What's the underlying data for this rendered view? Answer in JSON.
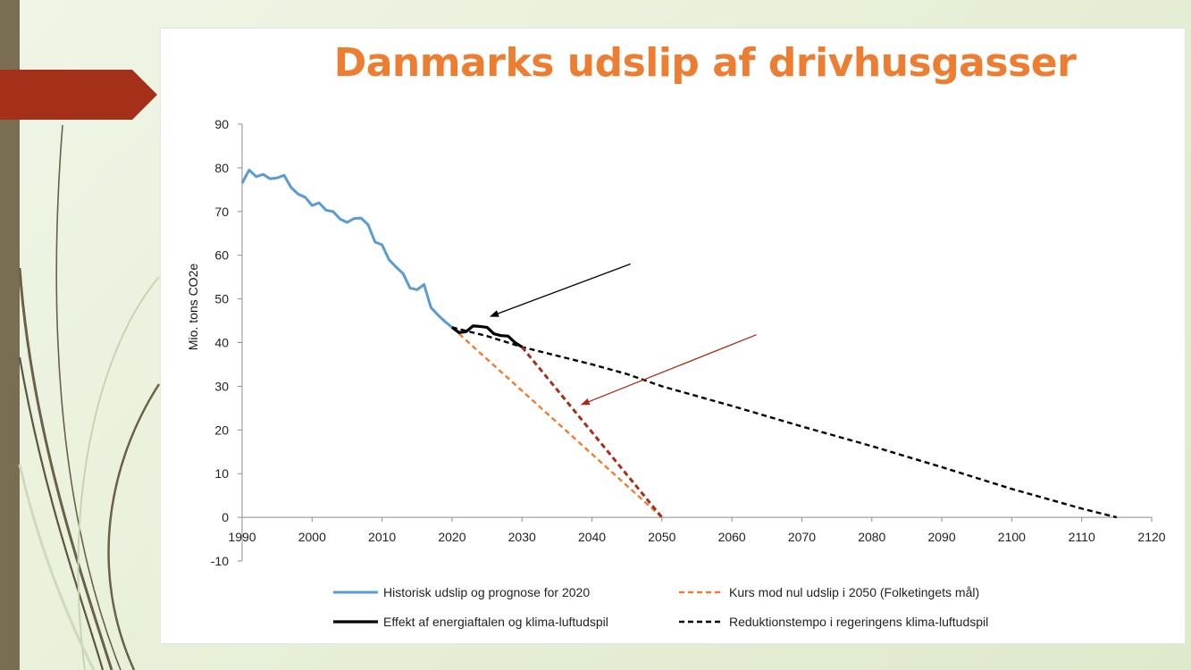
{
  "chart_data": {
    "type": "line",
    "title": "Danmarks udslip af drivhusgasser",
    "xlabel": "",
    "ylabel": "Mio. tons CO2e",
    "xlim": [
      1990,
      2120
    ],
    "ylim": [
      -10,
      90
    ],
    "x_ticks": [
      1990,
      2000,
      2010,
      2020,
      2030,
      2040,
      2050,
      2060,
      2070,
      2080,
      2090,
      2100,
      2110,
      2120
    ],
    "y_ticks": [
      90,
      80,
      70,
      60,
      50,
      40,
      30,
      20,
      10,
      0,
      -10
    ],
    "grid": false,
    "legend_position": "bottom",
    "series": [
      {
        "name": "Historisk udslip og prognose for 2020",
        "color": "#5b9bd5",
        "style": "solid",
        "x": [
          1990,
          1991,
          1992,
          1993,
          1994,
          1995,
          1996,
          1997,
          1998,
          1999,
          2000,
          2001,
          2002,
          2003,
          2004,
          2005,
          2006,
          2007,
          2008,
          2009,
          2010,
          2011,
          2012,
          2013,
          2014,
          2015,
          2016,
          2017,
          2018,
          2019,
          2020
        ],
        "y": [
          76.5,
          79.5,
          78.0,
          78.5,
          77.5,
          77.7,
          78.3,
          75.5,
          74.0,
          73.3,
          71.4,
          72.0,
          70.3,
          70.0,
          68.3,
          67.5,
          68.4,
          68.5,
          67.0,
          63.0,
          62.4,
          59.0,
          57.3,
          55.8,
          52.5,
          52.1,
          53.3,
          48.0,
          46.3,
          44.8,
          43.5
        ]
      },
      {
        "name": "Kurs mod nul udslip i 2050 (Folketingets mål)",
        "color": "#ed7d31",
        "style": "dashed",
        "x": [
          2021,
          2050
        ],
        "y": [
          42.0,
          0
        ]
      },
      {
        "name": "Effekt af energiaftalen og klima-luftudspil",
        "color": "#000000",
        "style": "solid-bold",
        "x": [
          2020,
          2021,
          2022,
          2023,
          2024,
          2025,
          2026,
          2027,
          2028,
          2029,
          2030
        ],
        "y": [
          43.5,
          42.3,
          42.5,
          43.8,
          43.7,
          43.5,
          42.0,
          41.6,
          41.5,
          40.0,
          39.0
        ]
      },
      {
        "name": "Reduktionstempo i regeringens klima-luftudspil",
        "color": "#000000",
        "style": "dashed",
        "x": [
          2020,
          2025,
          2030,
          2035,
          2040,
          2045,
          2050,
          2060,
          2070,
          2080,
          2090,
          2100,
          2110,
          2115
        ],
        "y": [
          43.5,
          41.5,
          39.0,
          37.0,
          35.0,
          32.8,
          30.0,
          25.5,
          20.8,
          16.3,
          11.5,
          6.5,
          2.0,
          0
        ]
      },
      {
        "color": "#a5301a",
        "style": "dashed",
        "x": [
          2030,
          2050
        ],
        "y": [
          39.0,
          0
        ]
      }
    ],
    "annotations": [
      {
        "type": "arrow",
        "color": "#000000",
        "from": [
          2045.5,
          58.0
        ],
        "to": [
          2025.5,
          46.0
        ]
      },
      {
        "type": "arrow",
        "color": "#a5301a",
        "from": [
          2063.5,
          41.8
        ],
        "to": [
          2038.5,
          25.8
        ]
      }
    ]
  }
}
